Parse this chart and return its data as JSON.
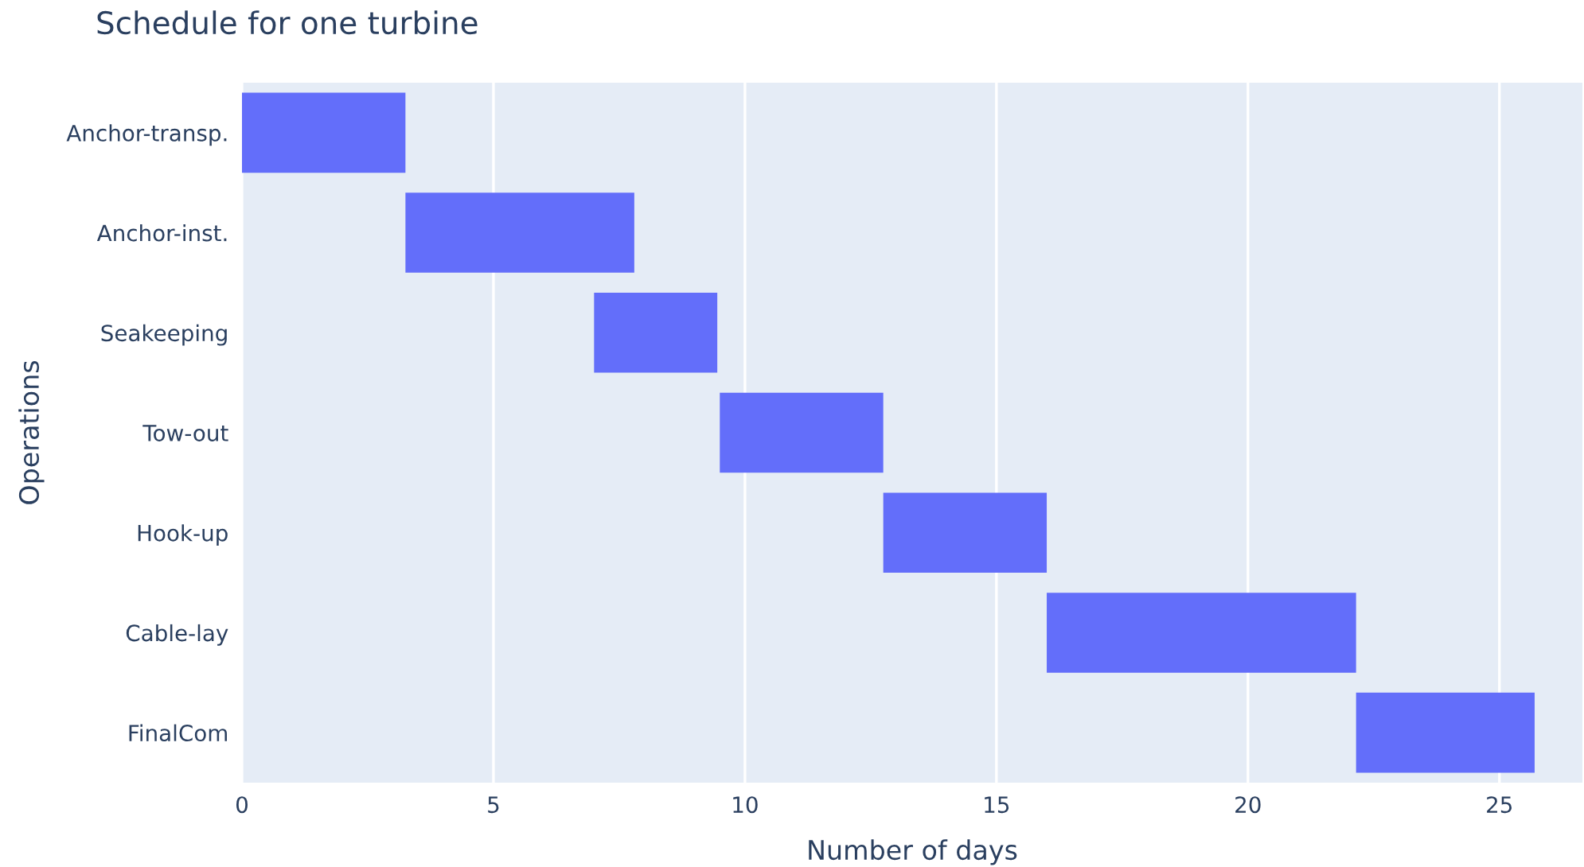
{
  "chart_data": {
    "type": "bar",
    "orientation": "horizontal",
    "title": "Schedule for one turbine",
    "xlabel": "Number of days",
    "ylabel": "Operations",
    "categories": [
      "Anchor-transp.",
      "Anchor-inst.",
      "Seakeeping",
      "Tow-out",
      "Hook-up",
      "Cable-lay",
      "FinalCom"
    ],
    "base": [
      0,
      3.25,
      7.0,
      9.5,
      12.75,
      16.0,
      22.15
    ],
    "values": [
      3.25,
      4.55,
      2.45,
      3.25,
      3.25,
      6.15,
      3.55
    ],
    "color": "#636efa",
    "xlim": [
      0,
      26.65
    ],
    "xticks": [
      0,
      5,
      10,
      15,
      20,
      25
    ],
    "grid": "x",
    "legend": false
  }
}
